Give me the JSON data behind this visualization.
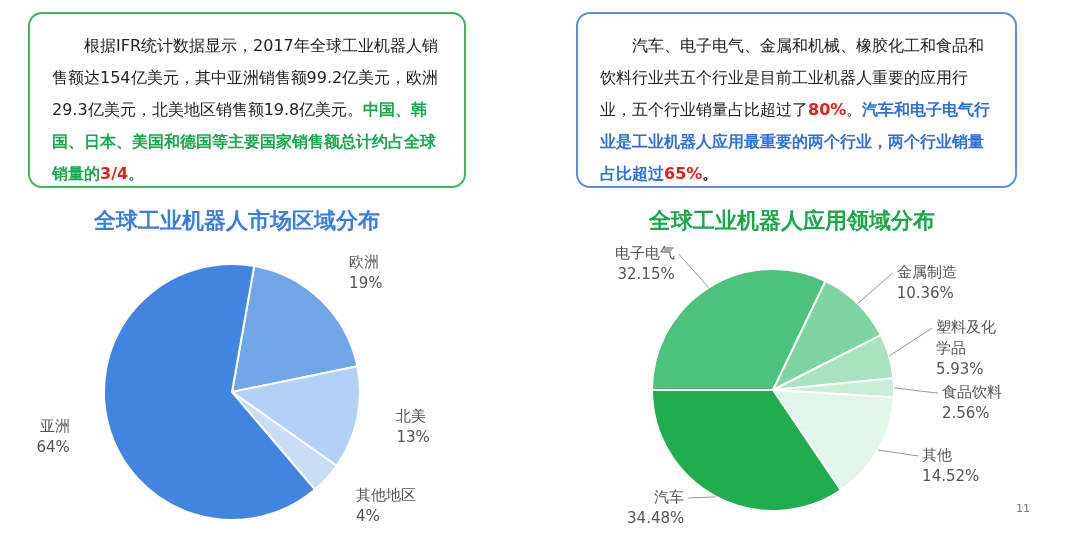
{
  "chart_data": [
    {
      "type": "other",
      "annotations": [
        "根据IFR统计数据显示，2017年全球工业机器人销售额达154亿美元，其中亚洲销售额99.2亿美元，欧洲29.3亿美元，北美地区销售额19.8亿美元。",
        "中国、韩国、日本、美国和德国等主要国家销售额总计约占全球销量的",
        "3/4",
        "。"
      ]
    },
    {
      "type": "other",
      "annotations": [
        "汽车、电子电气、金属和机械、橡胶化工和食品和饮料行业共五个行业是目前工业机器人重要的应用行业，五个行业销量占比超过了",
        "80%",
        "。",
        "汽车和电子电气行业是工业机器人应用最重要的两个行业，两个行业销量占比超过",
        "65%",
        "。"
      ]
    },
    {
      "type": "pie",
      "title": "全球工业机器人市场区域分布",
      "categories": [
        "欧洲",
        "北美",
        "其他地区",
        "亚洲"
      ],
      "values": [
        19,
        13,
        4,
        64
      ],
      "value_labels": [
        "19%",
        "13%",
        "4%",
        "64%"
      ],
      "colors": [
        "#6fa6ea",
        "#b3d1f7",
        "#c7ddf8",
        "#4285e0"
      ]
    },
    {
      "type": "pie",
      "title": "全球工业机器人应用领域分布",
      "categories": [
        "电子电气",
        "金属制造",
        "塑料及化学品",
        "食品饮料",
        "其他",
        "汽车"
      ],
      "values": [
        32.15,
        10.36,
        5.93,
        2.56,
        14.52,
        34.48
      ],
      "value_labels": [
        "32.15%",
        "10.36%",
        "5.93%",
        "2.56%",
        "14.52%",
        "34.48%"
      ],
      "colors": [
        "#4cc27c",
        "#7ed5a0",
        "#a9e3c0",
        "#c9eed8",
        "#e2f6ea",
        "#1fad50"
      ],
      "annotations": [
        "11"
      ]
    }
  ]
}
